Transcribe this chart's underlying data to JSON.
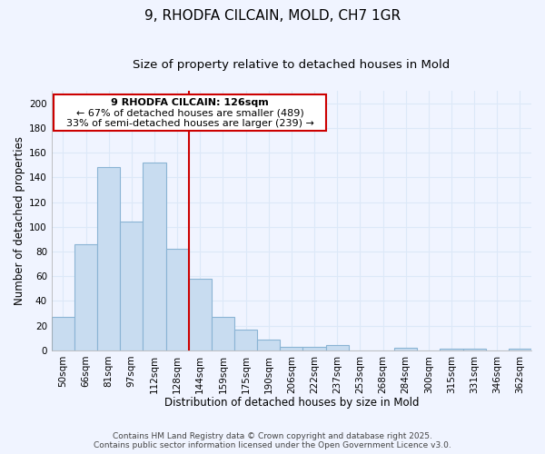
{
  "title": "9, RHODFA CILCAIN, MOLD, CH7 1GR",
  "subtitle": "Size of property relative to detached houses in Mold",
  "xlabel": "Distribution of detached houses by size in Mold",
  "ylabel": "Number of detached properties",
  "bar_color": "#c8dcf0",
  "bar_edge_color": "#8ab4d4",
  "categories": [
    "50sqm",
    "66sqm",
    "81sqm",
    "97sqm",
    "112sqm",
    "128sqm",
    "144sqm",
    "159sqm",
    "175sqm",
    "190sqm",
    "206sqm",
    "222sqm",
    "237sqm",
    "253sqm",
    "268sqm",
    "284sqm",
    "300sqm",
    "315sqm",
    "331sqm",
    "346sqm",
    "362sqm"
  ],
  "values": [
    27,
    86,
    148,
    104,
    152,
    82,
    58,
    27,
    17,
    9,
    3,
    3,
    4,
    0,
    0,
    2,
    0,
    1,
    1,
    0,
    1
  ],
  "ylim": [
    0,
    210
  ],
  "yticks": [
    0,
    20,
    40,
    60,
    80,
    100,
    120,
    140,
    160,
    180,
    200
  ],
  "vline_color": "#cc0000",
  "annotation_line1": "9 RHODFA CILCAIN: 126sqm",
  "annotation_line2": "← 67% of detached houses are smaller (489)",
  "annotation_line3": "33% of semi-detached houses are larger (239) →",
  "footer_line1": "Contains HM Land Registry data © Crown copyright and database right 2025.",
  "footer_line2": "Contains public sector information licensed under the Open Government Licence v3.0.",
  "background_color": "#f0f4ff",
  "grid_color": "#dce8f8",
  "title_fontsize": 11,
  "subtitle_fontsize": 9.5,
  "axis_label_fontsize": 8.5,
  "tick_fontsize": 7.5,
  "annotation_fontsize": 8,
  "footer_fontsize": 6.5
}
